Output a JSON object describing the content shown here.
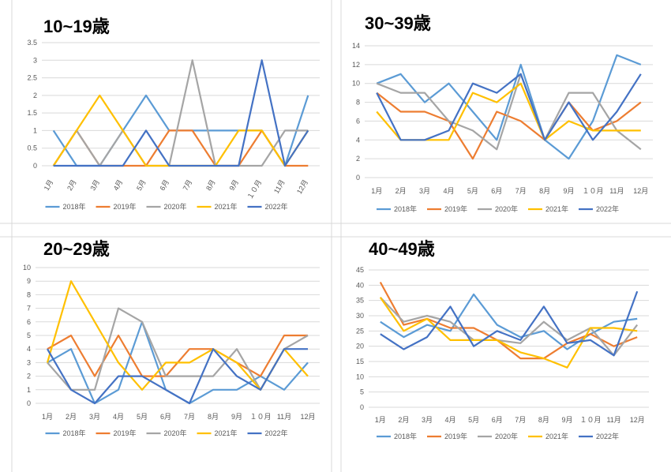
{
  "colors": {
    "2018": "#5b9bd5",
    "2019": "#ed7d31",
    "2020": "#a5a5a5",
    "2021": "#ffc000",
    "2022": "#4472c4"
  },
  "chart_data": [
    {
      "type": "line",
      "title": "10~19歳",
      "categories": [
        "1月",
        "2月",
        "3月",
        "4月",
        "5月",
        "6月",
        "7月",
        "8月",
        "9月",
        "１０月",
        "11月",
        "12月"
      ],
      "ylim": [
        0,
        3.5
      ],
      "yticks": [
        "0",
        "0.5",
        "1",
        "1.5",
        "2",
        "2.5",
        "3",
        "3.5"
      ],
      "grid": true,
      "legend": "bottom",
      "series": [
        {
          "name": "2018年",
          "values": [
            1,
            0,
            0,
            1,
            2,
            1,
            1,
            1,
            1,
            1,
            0,
            2
          ]
        },
        {
          "name": "2019年",
          "values": [
            0,
            1,
            0,
            0,
            0,
            1,
            1,
            0,
            0,
            1,
            0,
            0
          ]
        },
        {
          "name": "2020年",
          "values": [
            0,
            1,
            0,
            1,
            0,
            0,
            3,
            0,
            0,
            0,
            1,
            1
          ]
        },
        {
          "name": "2021年",
          "values": [
            0,
            1,
            2,
            1,
            0,
            0,
            0,
            0,
            1,
            1,
            0,
            1
          ]
        },
        {
          "name": "2022年",
          "values": [
            0,
            0,
            0,
            0,
            1,
            0,
            0,
            0,
            0,
            3,
            0,
            1
          ]
        }
      ]
    },
    {
      "type": "line",
      "title": "30~39歳",
      "categories": [
        "1月",
        "2月",
        "3月",
        "4月",
        "5月",
        "6月",
        "7月",
        "8月",
        "9月",
        "１０月",
        "11月",
        "12月"
      ],
      "ylim": [
        0,
        14
      ],
      "yticks": [
        "0",
        "2",
        "4",
        "6",
        "8",
        "10",
        "12",
        "14"
      ],
      "grid": true,
      "legend": "bottom",
      "series": [
        {
          "name": "2018年",
          "values": [
            10,
            11,
            8,
            10,
            7,
            4,
            12,
            4,
            2,
            6,
            13,
            12
          ]
        },
        {
          "name": "2019年",
          "values": [
            9,
            7,
            7,
            6,
            2,
            7,
            6,
            4,
            8,
            5,
            6,
            8
          ]
        },
        {
          "name": "2020年",
          "values": [
            10,
            9,
            9,
            6,
            5,
            3,
            11,
            4,
            9,
            9,
            5,
            3
          ]
        },
        {
          "name": "2021年",
          "values": [
            7,
            4,
            4,
            4,
            9,
            8,
            10,
            4,
            6,
            5,
            5,
            5
          ]
        },
        {
          "name": "2022年",
          "values": [
            9,
            4,
            4,
            5,
            10,
            9,
            11,
            4,
            8,
            4,
            7,
            11
          ]
        }
      ]
    },
    {
      "type": "line",
      "title": "20~29歳",
      "categories": [
        "1月",
        "2月",
        "3月",
        "4月",
        "5月",
        "6月",
        "7月",
        "8月",
        "9月",
        "１０月",
        "11月",
        "12月"
      ],
      "ylim": [
        0,
        10
      ],
      "yticks": [
        "0",
        "1",
        "2",
        "3",
        "4",
        "5",
        "6",
        "7",
        "8",
        "9",
        "10"
      ],
      "grid": true,
      "legend": "bottom",
      "series": [
        {
          "name": "2018年",
          "values": [
            3,
            4,
            0,
            1,
            6,
            1,
            0,
            1,
            1,
            2,
            1,
            3
          ]
        },
        {
          "name": "2019年",
          "values": [
            4,
            5,
            2,
            5,
            2,
            2,
            4,
            4,
            3,
            2,
            5,
            5
          ]
        },
        {
          "name": "2020年",
          "values": [
            3,
            1,
            1,
            7,
            6,
            2,
            2,
            2,
            4,
            1,
            4,
            5
          ]
        },
        {
          "name": "2021年",
          "values": [
            3,
            9,
            6,
            3,
            1,
            3,
            3,
            4,
            3,
            1,
            4,
            2
          ]
        },
        {
          "name": "2022年",
          "values": [
            4,
            1,
            0,
            2,
            2,
            1,
            0,
            4,
            2,
            1,
            4,
            4
          ]
        }
      ]
    },
    {
      "type": "line",
      "title": "40~49歳",
      "categories": [
        "1月",
        "2月",
        "3月",
        "4月",
        "5月",
        "6月",
        "7月",
        "8月",
        "9月",
        "１０月",
        "11月",
        "12月"
      ],
      "ylim": [
        0,
        45
      ],
      "yticks": [
        "0",
        "5",
        "10",
        "15",
        "20",
        "25",
        "30",
        "35",
        "40",
        "45"
      ],
      "grid": true,
      "legend": "bottom",
      "series": [
        {
          "name": "2018年",
          "values": [
            28,
            23,
            27,
            25,
            37,
            27,
            23,
            25,
            19,
            24,
            28,
            29
          ]
        },
        {
          "name": "2019年",
          "values": [
            41,
            27,
            29,
            26,
            26,
            22,
            16,
            16,
            21,
            24,
            20,
            23
          ]
        },
        {
          "name": "2020年",
          "values": [
            36,
            28,
            30,
            28,
            22,
            22,
            21,
            28,
            22,
            26,
            17,
            27
          ]
        },
        {
          "name": "2021年",
          "values": [
            36,
            25,
            29,
            22,
            22,
            22,
            18,
            16,
            13,
            26,
            26,
            25
          ]
        },
        {
          "name": "2022年",
          "values": [
            24,
            19,
            23,
            33,
            20,
            25,
            22,
            33,
            21,
            22,
            17,
            38
          ]
        }
      ]
    }
  ]
}
